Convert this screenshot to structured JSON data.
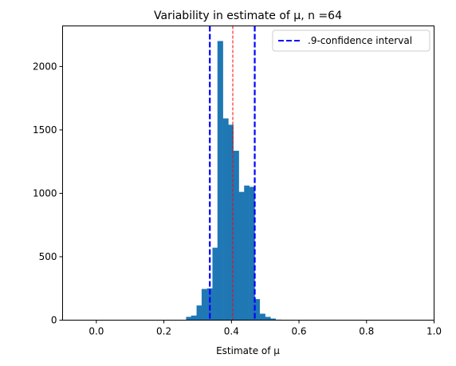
{
  "chart_data": {
    "type": "bar",
    "title": "Variability in estimate of μ, n =64",
    "xlabel": "Estimate of μ",
    "ylabel": "",
    "xlim": [
      -0.1,
      1.0
    ],
    "ylim": [
      0,
      2320
    ],
    "xticks": [
      0.0,
      0.2,
      0.4,
      0.6,
      0.8,
      1.0
    ],
    "xtick_labels": [
      "0.0",
      "0.2",
      "0.4",
      "0.6",
      "0.8",
      "1.0"
    ],
    "yticks": [
      0,
      500,
      1000,
      1500,
      2000
    ],
    "ytick_labels": [
      "0",
      "500",
      "1000",
      "1500",
      "2000"
    ],
    "grid": false,
    "bar_color": "#1f77b4",
    "bins": [
      {
        "x0": 0.266,
        "x1": 0.281,
        "count": 25
      },
      {
        "x0": 0.281,
        "x1": 0.297,
        "count": 35
      },
      {
        "x0": 0.297,
        "x1": 0.312,
        "count": 115
      },
      {
        "x0": 0.312,
        "x1": 0.328,
        "count": 245
      },
      {
        "x0": 0.328,
        "x1": 0.344,
        "count": 250
      },
      {
        "x0": 0.344,
        "x1": 0.359,
        "count": 570
      },
      {
        "x0": 0.359,
        "x1": 0.375,
        "count": 2200
      },
      {
        "x0": 0.375,
        "x1": 0.391,
        "count": 1590
      },
      {
        "x0": 0.391,
        "x1": 0.406,
        "count": 1540
      },
      {
        "x0": 0.406,
        "x1": 0.422,
        "count": 1335
      },
      {
        "x0": 0.422,
        "x1": 0.438,
        "count": 1010
      },
      {
        "x0": 0.438,
        "x1": 0.453,
        "count": 1060
      },
      {
        "x0": 0.453,
        "x1": 0.469,
        "count": 1050
      },
      {
        "x0": 0.469,
        "x1": 0.484,
        "count": 165
      },
      {
        "x0": 0.484,
        "x1": 0.5,
        "count": 50
      },
      {
        "x0": 0.5,
        "x1": 0.516,
        "count": 25
      },
      {
        "x0": 0.516,
        "x1": 0.531,
        "count": 12
      },
      {
        "x0": 0.531,
        "x1": 0.547,
        "count": 3
      }
    ],
    "confidence_interval": {
      "lower": 0.336,
      "upper": 0.469,
      "color": "#0000ff",
      "style": "dashed"
    },
    "mean_line": {
      "value": 0.404,
      "color": "#ff0000",
      "style": "dashed"
    },
    "legend": {
      "placement": "top-right",
      "entries": [
        ".9-confidence interval"
      ]
    }
  }
}
